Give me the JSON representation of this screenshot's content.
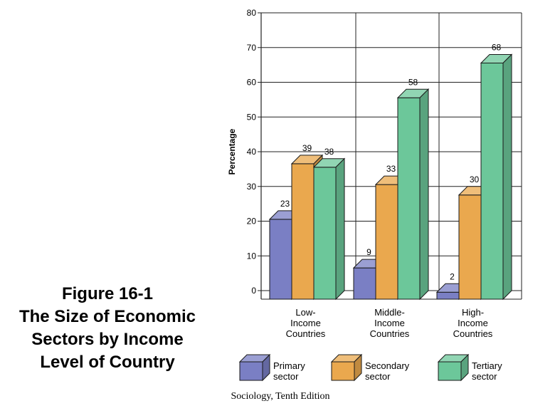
{
  "caption": {
    "line1": "Figure 16-1",
    "line2": "The Size of Economic",
    "line3": "Sectors by Income",
    "line4": "Level of Country"
  },
  "source": "Sociology, Tenth Edition",
  "colors": {
    "primary": "#7a7fc4",
    "secondary": "#eaa84e",
    "tertiary": "#6cc79a"
  },
  "chart_data": {
    "type": "bar",
    "categories": [
      [
        "Low-",
        "Income",
        "Countries"
      ],
      [
        "Middle-",
        "Income",
        "Countries"
      ],
      [
        "High-",
        "Income",
        "Countries"
      ]
    ],
    "series": [
      {
        "name": [
          "Primary",
          "sector"
        ],
        "values": [
          23,
          9,
          2
        ]
      },
      {
        "name": [
          "Secondary",
          "sector"
        ],
        "values": [
          39,
          33,
          30
        ]
      },
      {
        "name": [
          "Tertiary",
          "sector"
        ],
        "values": [
          38,
          58,
          68
        ]
      }
    ],
    "ylabel": "Percentage",
    "ylim": [
      0,
      80
    ],
    "yticks": [
      0,
      10,
      20,
      30,
      40,
      50,
      60,
      70,
      80
    ],
    "grid": true,
    "style": "3d",
    "legend_position": "bottom"
  }
}
